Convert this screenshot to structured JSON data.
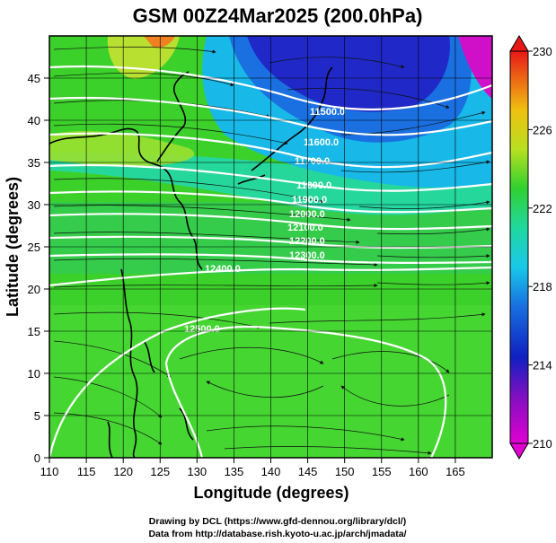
{
  "title": "GSM 00Z24Mar2025 (200.0hPa)",
  "xlabel": "Longitude (degrees)",
  "ylabel": "Latitude  (degrees)",
  "xticks": [
    "110",
    "115",
    "120",
    "125",
    "130",
    "135",
    "140",
    "145",
    "150",
    "155",
    "160",
    "165"
  ],
  "yticks": [
    "0",
    "5",
    "10",
    "15",
    "20",
    "25",
    "30",
    "35",
    "40",
    "45"
  ],
  "colorbar": {
    "labels": [
      "230",
      "226",
      "222",
      "218",
      "214",
      "210"
    ],
    "min": 210,
    "max": 230
  },
  "contour_labels": [
    "11500.0",
    "11600.0",
    "11700.0",
    "11800.0",
    "11900.0",
    "12000.0",
    "12100.0",
    "12200.0",
    "12300.0",
    "12400.0",
    "12500.0"
  ],
  "credits": {
    "line1": "Drawing by DCL (https://www.gfd-dennou.org/library/dcl/)",
    "line2": "Data from http://database.rish.kyoto-u.ac.jp/arch/jmadata/"
  },
  "chart_data": {
    "type": "heatmap",
    "variable": "temperature (shaded), geopotential height (contours), wind (vectors)",
    "level": "200.0hPa",
    "xlim": [
      110,
      170
    ],
    "ylim": [
      0,
      50
    ],
    "colorscale": {
      "min": 210,
      "max": 230,
      "ticks": [
        210,
        214,
        218,
        222,
        226,
        230
      ]
    },
    "colors": {
      "low": "#e000c0",
      "mid_low": "#2030d0",
      "mid": "#20d0e0",
      "mid_high": "#40d020",
      "high": "#e02010"
    }
  }
}
